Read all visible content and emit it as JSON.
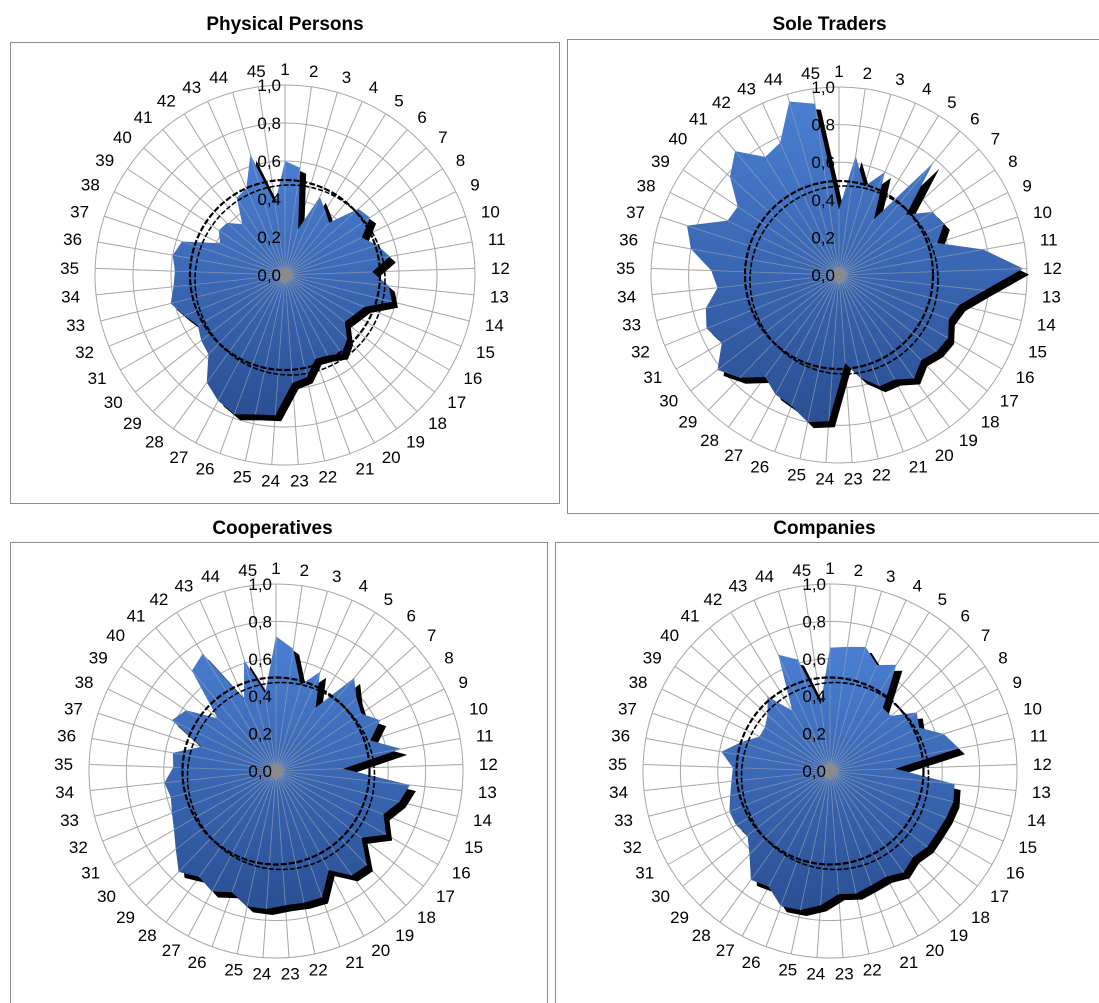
{
  "colors": {
    "fill_top": "#4a7fd2",
    "fill_bottom": "#2a4f94",
    "shadow": "#000000",
    "grid": "#a6a6a6",
    "center": "#8a8a8a",
    "reference_circle": "#000000"
  },
  "chart_data": [
    {
      "type": "radar",
      "title": "Physical Persons",
      "categories": [
        "1",
        "2",
        "3",
        "4",
        "5",
        "6",
        "7",
        "8",
        "9",
        "10",
        "11",
        "12",
        "13",
        "14",
        "15",
        "16",
        "17",
        "18",
        "19",
        "20",
        "21",
        "22",
        "23",
        "24",
        "25",
        "26",
        "27",
        "28",
        "29",
        "30",
        "31",
        "32",
        "33",
        "34",
        "35",
        "36",
        "37",
        "38",
        "39",
        "40",
        "41",
        "42",
        "43",
        "44",
        "45"
      ],
      "values": [
        0.6,
        0.57,
        0.25,
        0.45,
        0.4,
        0.36,
        0.52,
        0.54,
        0.45,
        0.51,
        0.56,
        0.46,
        0.55,
        0.58,
        0.45,
        0.42,
        0.4,
        0.47,
        0.51,
        0.48,
        0.47,
        0.55,
        0.57,
        0.74,
        0.75,
        0.78,
        0.75,
        0.7,
        0.58,
        0.56,
        0.53,
        0.57,
        0.62,
        0.59,
        0.58,
        0.6,
        0.57,
        0.38,
        0.42,
        0.41,
        0.35,
        0.48,
        0.5,
        0.66,
        0.38
      ],
      "rlim": [
        0,
        1.0
      ],
      "radial_ticks": [
        "0,0",
        "0,2",
        "0,4",
        "0,6",
        "0,8",
        "1,0"
      ],
      "reference_circle": 0.5,
      "grid": true
    },
    {
      "type": "radar",
      "title": "Sole Traders",
      "categories": [
        "1",
        "2",
        "3",
        "4",
        "5",
        "6",
        "7",
        "8",
        "9",
        "10",
        "11",
        "12",
        "13",
        "14",
        "15",
        "16",
        "17",
        "18",
        "19",
        "20",
        "21",
        "22",
        "23",
        "24",
        "25",
        "26",
        "27",
        "28",
        "29",
        "30",
        "31",
        "32",
        "33",
        "34",
        "35",
        "36",
        "37",
        "38",
        "39",
        "40",
        "41",
        "42",
        "43",
        "44",
        "45"
      ],
      "values": [
        0.35,
        0.64,
        0.49,
        0.6,
        0.35,
        0.78,
        0.48,
        0.6,
        0.62,
        0.55,
        0.78,
        0.98,
        0.78,
        0.66,
        0.63,
        0.67,
        0.66,
        0.63,
        0.68,
        0.63,
        0.63,
        0.56,
        0.47,
        0.78,
        0.8,
        0.74,
        0.72,
        0.67,
        0.76,
        0.82,
        0.72,
        0.76,
        0.73,
        0.65,
        0.68,
        0.8,
        0.85,
        0.66,
        0.65,
        0.78,
        0.86,
        0.74,
        0.77,
        0.96,
        0.92
      ],
      "rlim": [
        0,
        1.0
      ],
      "radial_ticks": [
        "0,0",
        "0,2",
        "0,4",
        "0,6",
        "0,8",
        "1,0"
      ],
      "reference_circle": 0.5,
      "grid": true
    },
    {
      "type": "radar",
      "title": "Cooperatives",
      "categories": [
        "1",
        "2",
        "3",
        "4",
        "5",
        "6",
        "7",
        "8",
        "9",
        "10",
        "11",
        "12",
        "13",
        "14",
        "15",
        "16",
        "17",
        "18",
        "19",
        "20",
        "21",
        "22",
        "23",
        "24",
        "25",
        "26",
        "27",
        "28",
        "29",
        "30",
        "31",
        "32",
        "33",
        "34",
        "35",
        "36",
        "37",
        "38",
        "39",
        "40",
        "41",
        "42",
        "43",
        "44",
        "45"
      ],
      "values": [
        0.72,
        0.66,
        0.48,
        0.58,
        0.4,
        0.65,
        0.58,
        0.55,
        0.62,
        0.53,
        0.68,
        0.36,
        0.72,
        0.68,
        0.62,
        0.68,
        0.58,
        0.7,
        0.69,
        0.6,
        0.72,
        0.72,
        0.72,
        0.74,
        0.74,
        0.69,
        0.73,
        0.7,
        0.75,
        0.68,
        0.63,
        0.6,
        0.58,
        0.6,
        0.55,
        0.56,
        0.42,
        0.62,
        0.58,
        0.42,
        0.7,
        0.74,
        0.42,
        0.62,
        0.42
      ],
      "rlim": [
        0,
        1.0
      ],
      "radial_ticks": [
        "0,0",
        "0,2",
        "0,4",
        "0,6",
        "0,8",
        "1,0"
      ],
      "reference_circle": 0.5,
      "grid": true
    },
    {
      "type": "radar",
      "title": "Companies",
      "categories": [
        "1",
        "2",
        "3",
        "4",
        "5",
        "6",
        "7",
        "8",
        "9",
        "10",
        "11",
        "12",
        "13",
        "14",
        "15",
        "16",
        "17",
        "18",
        "19",
        "20",
        "21",
        "22",
        "23",
        "24",
        "25",
        "26",
        "27",
        "28",
        "29",
        "30",
        "31",
        "32",
        "33",
        "34",
        "35",
        "36",
        "37",
        "38",
        "39",
        "40",
        "41",
        "42",
        "43",
        "44",
        "45"
      ],
      "values": [
        0.66,
        0.67,
        0.69,
        0.62,
        0.67,
        0.44,
        0.44,
        0.56,
        0.53,
        0.64,
        0.7,
        0.35,
        0.67,
        0.68,
        0.67,
        0.66,
        0.66,
        0.64,
        0.67,
        0.64,
        0.65,
        0.67,
        0.66,
        0.72,
        0.76,
        0.77,
        0.7,
        0.72,
        0.62,
        0.56,
        0.58,
        0.58,
        0.55,
        0.53,
        0.52,
        0.59,
        0.5,
        0.42,
        0.42,
        0.45,
        0.52,
        0.38,
        0.68,
        0.62,
        0.36
      ],
      "rlim": [
        0,
        1.0
      ],
      "radial_ticks": [
        "0,0",
        "0,2",
        "0,4",
        "0,6",
        "0,8",
        "1,0"
      ],
      "reference_circle": 0.5,
      "grid": true
    }
  ]
}
